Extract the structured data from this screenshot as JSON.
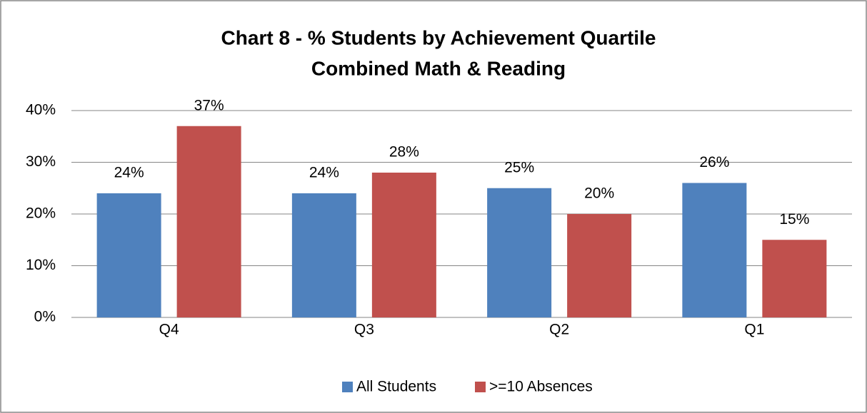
{
  "chart_data": {
    "type": "bar",
    "title": "Chart 8 - % Students by Achievement Quartile",
    "subtitle": "Combined Math & Reading",
    "categories": [
      "Q4",
      "Q3",
      "Q2",
      "Q1"
    ],
    "series": [
      {
        "name": "All Students",
        "color": "#4f81bd",
        "values": [
          24,
          24,
          25,
          26
        ],
        "value_labels": [
          "24%",
          "24%",
          "25%",
          "26%"
        ]
      },
      {
        "name": ">=10 Absences",
        "color": "#c0504d",
        "values": [
          37,
          28,
          20,
          15
        ],
        "value_labels": [
          "37%",
          "28%",
          "20%",
          "15%"
        ]
      }
    ],
    "ylim": [
      0,
      40
    ],
    "yticks": [
      {
        "value": 0,
        "label": "0%"
      },
      {
        "value": 10,
        "label": "10%"
      },
      {
        "value": 20,
        "label": "20%"
      },
      {
        "value": 30,
        "label": "30%"
      },
      {
        "value": 40,
        "label": "40%"
      }
    ],
    "grid": true,
    "legend": "bottom"
  }
}
